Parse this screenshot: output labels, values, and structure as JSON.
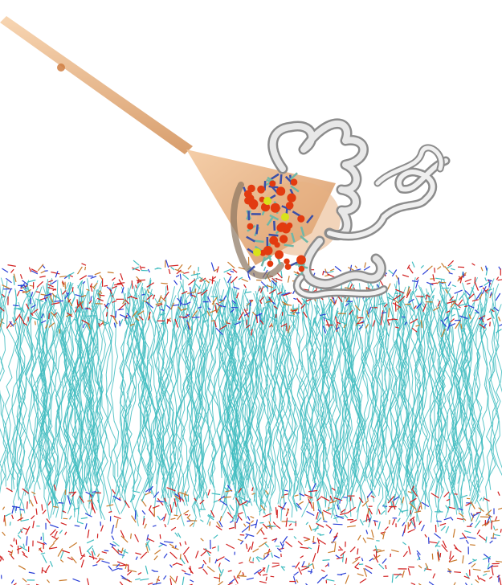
{
  "scene": {
    "background": "#ffffff",
    "colors": {
      "lipid_tail": "#3fbcbf",
      "lipid_head_oxygen": "#d11f1f",
      "lipid_head_nitrogen": "#2a3fd6",
      "lipid_head_phosphorus": "#c87a2c",
      "pull_vector": "#e8b282",
      "pull_vector_dark": "#c98752",
      "protein_ribbon": "#dcdcdc",
      "protein_ribbon_shade": "#8c8c8c",
      "binding_site_atoms": "#e23b10",
      "calcium_ion": "#d8e21a"
    },
    "objects": [
      "lipid-bilayer",
      "membrane-upper-leaflet-headgroups",
      "membrane-lower-leaflet-headgroups",
      "pulling-vector-arrow",
      "protein-ribbon",
      "binding-site-residues"
    ]
  }
}
